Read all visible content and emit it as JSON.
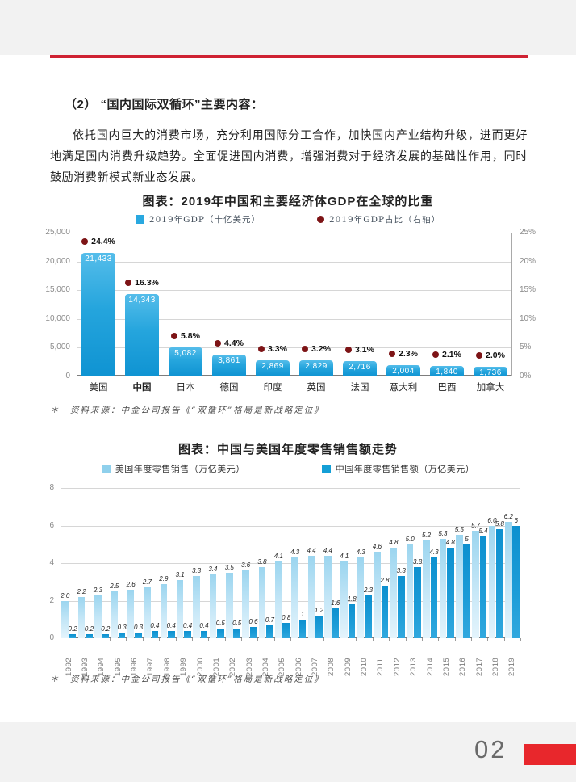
{
  "page": {
    "heading": "（2） “国内国际双循环”主要内容：",
    "paragraph": "依托国内巨大的消费市场，充分利用国际分工合作，加快国内产业结构升级，进而更好地满足国内消费升级趋势。全面促进国内消费，增强消费对于经济发展的基础性作用，同时鼓励消费新模式新业态发展。",
    "page_number": "02"
  },
  "colors": {
    "accent_red": "#cf2233",
    "footer_red": "#e8272c",
    "gdp_bar_blue": "#1b9ed9",
    "us_bar_light_blue": "#9bd5ef",
    "cn_bar_blue": "#0e93d2",
    "share_dot_maroon": "#7d1416",
    "band_gray": "#f2f2f2"
  },
  "chart_data": [
    {
      "type": "bar",
      "title": "图表：2019年中国和主要经济体GDP在全球的比重",
      "legend": [
        "2019年GDP（十亿美元）",
        "2019年GDP占比（右轴）"
      ],
      "categories": [
        "美国",
        "中国",
        "日本",
        "德国",
        "印度",
        "英国",
        "法国",
        "意大利",
        "巴西",
        "加拿大"
      ],
      "emphasis_category": "中国",
      "series": [
        {
          "name": "2019年GDP（十亿美元）",
          "type": "bar",
          "values": [
            21433,
            14343,
            5082,
            3861,
            2869,
            2829,
            2716,
            2004,
            1840,
            1736
          ],
          "labels": [
            "21,433",
            "14,343",
            "5,082",
            "3,861",
            "2,869",
            "2,829",
            "2,716",
            "2,004",
            "1,840",
            "1,736"
          ]
        },
        {
          "name": "2019年GDP占比（右轴）",
          "type": "point",
          "values": [
            24.4,
            16.3,
            5.8,
            4.4,
            3.3,
            3.2,
            3.1,
            2.3,
            2.1,
            2.0
          ],
          "labels": [
            "24.4%",
            "16.3%",
            "5.8%",
            "4.4%",
            "3.3%",
            "3.2%",
            "3.1%",
            "2.3%",
            "2.1%",
            "2.0%"
          ]
        }
      ],
      "left_axis": {
        "ticks": [
          "0",
          "5,000",
          "10,000",
          "15,000",
          "20,000",
          "25,000"
        ],
        "max": 25000
      },
      "right_axis": {
        "ticks": [
          "0%",
          "5%",
          "10%",
          "15%",
          "20%",
          "25%"
        ],
        "max": 25
      },
      "grid": true,
      "legend_position": "top",
      "source": "＊　资料来源：中金公司报告《“双循环”格局是新战略定位》"
    },
    {
      "type": "bar",
      "title": "图表：中国与美国年度零售销售额走势",
      "legend": [
        "美国年度零售销售（万亿美元）",
        "中国年度零售销售额（万亿美元）"
      ],
      "categories": [
        "1992",
        "1993",
        "1994",
        "1995",
        "1996",
        "1997",
        "1998",
        "1999",
        "2000",
        "2001",
        "2002",
        "2003",
        "2004",
        "2005",
        "2006",
        "2007",
        "2008",
        "2009",
        "2010",
        "2011",
        "2012",
        "2013",
        "2014",
        "2015",
        "2016",
        "2017",
        "2018",
        "2019"
      ],
      "series": [
        {
          "name": "美国年度零售销售（万亿美元）",
          "values": [
            2.0,
            2.2,
            2.3,
            2.5,
            2.6,
            2.7,
            2.9,
            3.1,
            3.3,
            3.4,
            3.5,
            3.6,
            3.8,
            4.1,
            4.3,
            4.4,
            4.4,
            4.1,
            4.3,
            4.6,
            4.8,
            5.0,
            5.2,
            5.3,
            5.5,
            5.7,
            6.0,
            6.2
          ],
          "labels": [
            "2.0",
            "2.2",
            "2.3",
            "2.5",
            "2.6",
            "2.7",
            "2.9",
            "3.1",
            "3.3",
            "3.4",
            "3.5",
            "3.6",
            "3.8",
            "4.1",
            "4.3",
            "4.4",
            "4.4",
            "4.1",
            "4.3",
            "4.6",
            "4.8",
            "5.0",
            "5.2",
            "5.3",
            "5.5",
            "5.7",
            "6.0",
            "6.2"
          ]
        },
        {
          "name": "中国年度零售销售额（万亿美元）",
          "values": [
            0.2,
            0.2,
            0.2,
            0.3,
            0.3,
            0.4,
            0.4,
            0.4,
            0.4,
            0.5,
            0.5,
            0.6,
            0.7,
            0.8,
            1,
            1.2,
            1.6,
            1.8,
            2.3,
            2.8,
            3.3,
            3.8,
            4.3,
            4.8,
            5,
            5.4,
            5.8,
            6
          ],
          "labels": [
            "0.2",
            "0.2",
            "0.2",
            "0.3",
            "0.3",
            "0.4",
            "0.4",
            "0.4",
            "0.4",
            "0.5",
            "0.5",
            "0.6",
            "0.7",
            "0.8",
            "1",
            "1.2",
            "1.6",
            "1.8",
            "2.3",
            "2.8",
            "3.3",
            "3.8",
            "4.3",
            "4.8",
            "5",
            "5.4",
            "5.8",
            "6"
          ]
        }
      ],
      "y_axis": {
        "ticks": [
          "0",
          "2",
          "4",
          "6",
          "8"
        ],
        "max": 8
      },
      "grid": true,
      "legend_position": "top",
      "source": "＊　资料来源：中金公司报告《“双循环”格局是新战略定位》"
    }
  ]
}
